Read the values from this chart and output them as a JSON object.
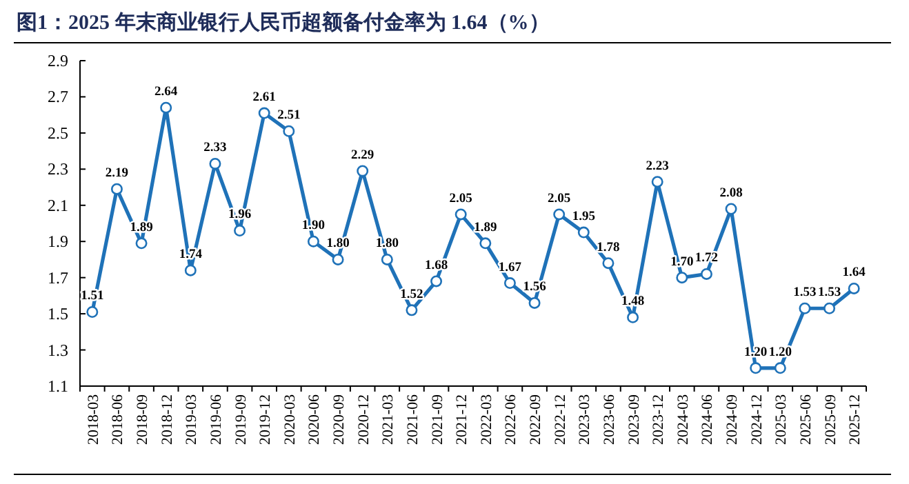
{
  "chart_data": {
    "type": "line",
    "title": "图1：2025 年末商业银行人民币超额备付金率为 1.64（%）",
    "categories": [
      "2018-03",
      "2018-06",
      "2018-09",
      "2018-12",
      "2019-03",
      "2019-06",
      "2019-09",
      "2019-12",
      "2020-03",
      "2020-06",
      "2020-09",
      "2020-12",
      "2021-03",
      "2021-06",
      "2021-09",
      "2021-12",
      "2022-03",
      "2022-06",
      "2022-09",
      "2022-12",
      "2023-03",
      "2023-06",
      "2023-09",
      "2023-12",
      "2024-03",
      "2024-06",
      "2024-09",
      "2024-12",
      "2025-03",
      "2025-06",
      "2025-09",
      "2025-12"
    ],
    "series": [
      {
        "color": "#1f72b8",
        "values": [
          1.51,
          2.19,
          1.89,
          2.64,
          1.74,
          2.33,
          1.96,
          2.61,
          2.51,
          1.9,
          1.8,
          2.29,
          1.8,
          1.52,
          1.68,
          2.05,
          1.89,
          1.67,
          1.56,
          2.05,
          1.95,
          1.78,
          1.48,
          2.23,
          1.7,
          1.72,
          2.08,
          1.2,
          1.2,
          1.53,
          1.53,
          1.64
        ],
        "value_labels": [
          "1.51",
          "2.19",
          "1.89",
          "2.64",
          "1.74",
          "2.33",
          "1.96",
          "2.61",
          "2.51",
          "1.90",
          "1.80",
          "2.29",
          "1.80",
          "1.52",
          "1.68",
          "2.05",
          "1.89",
          "1.67",
          "1.56",
          "2.05",
          "1.95",
          "1.78",
          "1.48",
          "2.23",
          "1.70",
          "1.72",
          "2.08",
          "1.20",
          "1.20",
          "1.53",
          "1.53",
          "1.64"
        ]
      }
    ],
    "ylim": [
      1.1,
      2.9
    ],
    "yticks": [
      1.1,
      1.3,
      1.5,
      1.7,
      1.9,
      2.1,
      2.3,
      2.5,
      2.7,
      2.9
    ],
    "marker": "circle",
    "line_style": "solid"
  }
}
